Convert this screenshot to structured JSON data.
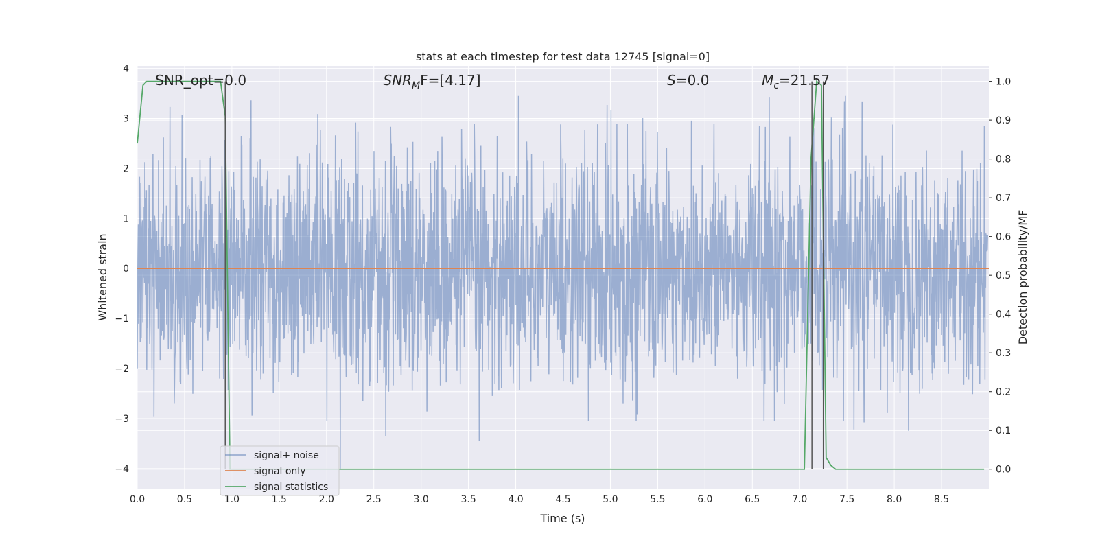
{
  "chart_data": {
    "type": "line",
    "title": "stats at each timestep for test data 12745 [signal=0]",
    "xlabel": "Time (s)",
    "ylabel": "Whitened strain",
    "ylabel_right": "Detection probability/MF",
    "xlim": [
      0.0,
      9.0
    ],
    "ylim_left": [
      -4.4,
      4.05
    ],
    "ylim_right": [
      -0.05,
      1.04
    ],
    "xticks": [
      0.0,
      0.5,
      1.0,
      1.5,
      2.0,
      2.5,
      3.0,
      3.5,
      4.0,
      4.5,
      5.0,
      5.5,
      6.0,
      6.5,
      7.0,
      7.5,
      8.0,
      8.5
    ],
    "xtick_labels": [
      "0.0",
      "0.5",
      "1.0",
      "1.5",
      "2.0",
      "2.5",
      "3.0",
      "3.5",
      "4.0",
      "4.5",
      "5.0",
      "5.5",
      "6.0",
      "6.5",
      "7.0",
      "7.5",
      "8.0",
      "8.5"
    ],
    "yticks_left": [
      4,
      3,
      2,
      1,
      0,
      -1,
      -2,
      -3,
      -4
    ],
    "ytick_labels_left": [
      "4",
      "3",
      "2",
      "1",
      "0",
      "−1",
      "−2",
      "−3",
      "−4"
    ],
    "yticks_right": [
      1.0,
      0.9,
      0.8,
      0.7,
      0.6,
      0.5,
      0.4,
      0.3,
      0.2,
      0.1,
      0.0
    ],
    "ytick_labels_right": [
      "1.0",
      "0.9",
      "0.8",
      "0.7",
      "0.6",
      "0.5",
      "0.4",
      "0.3",
      "0.2",
      "0.1",
      "0.0"
    ],
    "annotations": [
      {
        "id": "snr-opt",
        "prefix": "SNR_opt",
        "sub": "",
        "suffix": "=0.0",
        "x": 0.19,
        "italic": false
      },
      {
        "id": "snr-mf",
        "prefix": "SNR",
        "sub": "M",
        "suffix": "F=[4.17]",
        "x": 2.6,
        "italic": true
      },
      {
        "id": "s-stat",
        "prefix": "S",
        "sub": "",
        "suffix": "=0.0",
        "x": 5.6,
        "italic": true
      },
      {
        "id": "mchirp",
        "prefix": "M",
        "sub": "c",
        "suffix": "=21.57",
        "x": 6.6,
        "italic": true
      }
    ],
    "series": [
      {
        "name": "signal+ noise",
        "color": "#4c72b0",
        "opacity": 0.5,
        "axis": "left",
        "description": "whitened noise, approx. gaussian, envelope roughly ±2.5 with peaks up to 3.4 and dips to -4.0"
      },
      {
        "name": "signal only",
        "color": "#dd8452",
        "axis": "left",
        "x": [
          0.0,
          9.0
        ],
        "y": [
          0.0,
          0.0
        ]
      },
      {
        "name": "signal statistics",
        "color": "#55a868",
        "axis": "right",
        "x": [
          0.0,
          0.06,
          0.1,
          0.3,
          0.6,
          0.88,
          0.93,
          0.98,
          1.0,
          2.0,
          4.0,
          6.0,
          7.05,
          7.12,
          7.18,
          7.23,
          7.28,
          7.33,
          7.38,
          8.0,
          8.95
        ],
        "y": [
          0.84,
          0.99,
          1.0,
          1.0,
          1.0,
          1.0,
          0.91,
          0.0,
          0.0,
          0.0,
          0.0,
          0.0,
          0.0,
          0.8,
          1.0,
          0.99,
          0.03,
          0.01,
          0.0,
          0.0,
          0.0
        ]
      }
    ],
    "vertical_lines": [
      0.93,
      7.13,
      7.25
    ],
    "vertical_line_color": "#555555",
    "grid": true,
    "legend_position": "lower-left",
    "background_color": "#eaeaf2"
  }
}
